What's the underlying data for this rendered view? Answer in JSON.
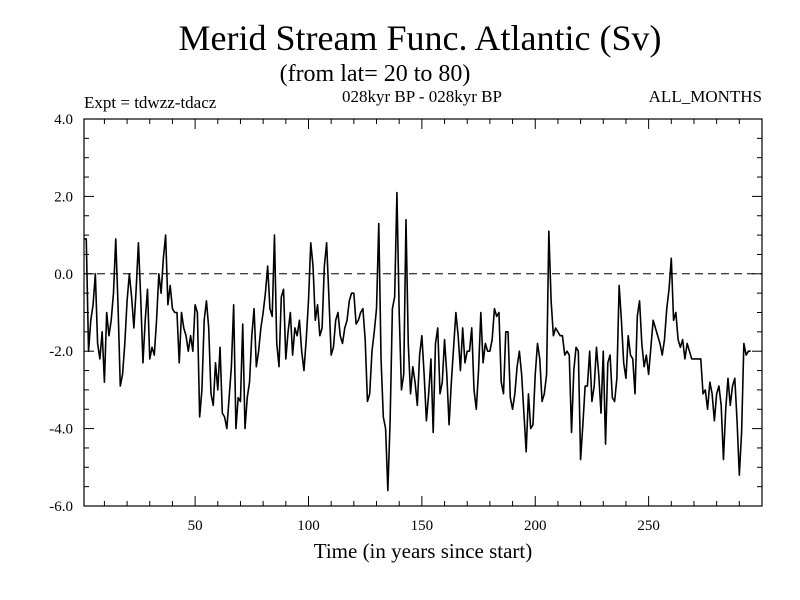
{
  "chart_data": {
    "type": "line",
    "title": "Merid Stream Func. Atlantic (Sv)",
    "subtitle": "(from lat= 20 to 80)",
    "left_note": "Expt = tdwzz-tdacz",
    "center_note": "028kyr BP - 028kyr BP",
    "right_note": "ALL_MONTHS",
    "xlabel": "Time (in years since start)",
    "ylabel": "",
    "xlim": [
      1,
      300
    ],
    "ylim": [
      -6,
      4
    ],
    "x_ticks": [
      50,
      100,
      150,
      200,
      250
    ],
    "x_tick_labels": [
      "50",
      "100",
      "150",
      "200",
      "250"
    ],
    "y_ticks": [
      4,
      2,
      0,
      -2,
      -4,
      -6
    ],
    "y_tick_labels": [
      "4.0",
      "2.0",
      "0.0",
      "-2.0",
      "-4.0",
      "-6.0"
    ],
    "reference_line": {
      "y": 0,
      "style": "dashed"
    },
    "grid": false,
    "line_color": "#000000",
    "series": [
      {
        "x_start": 1,
        "x_step": 1,
        "values": [
          0.9,
          0.9,
          -2.0,
          -1.2,
          -0.8,
          0.0,
          -1.8,
          -2.2,
          -1.5,
          -2.8,
          -1.0,
          -1.6,
          -1.2,
          -0.5,
          0.9,
          -0.8,
          -2.9,
          -2.6,
          -1.8,
          -0.7,
          0.0,
          -0.6,
          -1.4,
          -0.4,
          0.8,
          -0.6,
          -2.3,
          -1.2,
          -0.4,
          -2.2,
          -1.9,
          -2.1,
          -1.2,
          0.0,
          -0.5,
          0.4,
          1.0,
          -0.8,
          -0.3,
          -0.9,
          -1.0,
          -1.0,
          -2.3,
          -1.0,
          -1.4,
          -1.6,
          -2.0,
          -1.6,
          -2.0,
          -0.8,
          -1.0,
          -3.7,
          -3.0,
          -1.2,
          -0.7,
          -1.4,
          -3.1,
          -3.4,
          -2.3,
          -3.0,
          -1.9,
          -3.6,
          -3.7,
          -4.0,
          -3.2,
          -2.4,
          -0.8,
          -4.0,
          -3.2,
          -3.3,
          -1.3,
          -4.0,
          -3.2,
          -2.8,
          -1.6,
          -0.9,
          -2.4,
          -2.0,
          -1.4,
          -1.0,
          -0.5,
          0.2,
          -0.9,
          -1.1,
          1.0,
          -1.8,
          -2.4,
          -0.6,
          -0.4,
          -2.2,
          -1.5,
          -1.0,
          -2.1,
          -1.4,
          -1.6,
          -1.2,
          -2.0,
          -2.5,
          -1.7,
          -0.7,
          0.8,
          0.2,
          -1.2,
          -0.8,
          -1.6,
          -1.4,
          0.2,
          0.8,
          -0.6,
          -2.1,
          -1.9,
          -1.2,
          -1.0,
          -1.6,
          -1.8,
          -1.4,
          -1.2,
          -0.7,
          -0.5,
          -0.5,
          -1.3,
          -1.2,
          -1.0,
          -0.9,
          -1.7,
          -3.3,
          -3.1,
          -2.0,
          -1.5,
          -0.9,
          1.3,
          -2.2,
          -3.7,
          -4.0,
          -5.6,
          -3.8,
          -0.9,
          -0.6,
          2.1,
          -1.0,
          -3.0,
          -2.6,
          1.4,
          -1.8,
          -3.1,
          -2.4,
          -2.8,
          -3.4,
          -2.1,
          -1.6,
          -2.6,
          -3.8,
          -3.1,
          -2.2,
          -4.1,
          -1.8,
          -1.4,
          -3.1,
          -2.8,
          -1.7,
          -2.6,
          -3.9,
          -2.8,
          -1.9,
          -1.0,
          -1.6,
          -2.5,
          -1.4,
          -2.3,
          -2.0,
          -2.0,
          -1.4,
          -3.0,
          -3.5,
          -2.5,
          -1.0,
          -2.3,
          -1.8,
          -2.0,
          -2.0,
          -1.7,
          -0.9,
          -1.1,
          -1.0,
          -2.8,
          -3.1,
          -1.5,
          -1.5,
          -3.2,
          -3.5,
          -3.1,
          -2.4,
          -2.0,
          -2.6,
          -3.6,
          -4.6,
          -3.1,
          -4.0,
          -3.9,
          -2.6,
          -1.8,
          -2.2,
          -3.3,
          -3.1,
          -2.6,
          1.1,
          -0.7,
          -1.6,
          -1.4,
          -1.5,
          -1.6,
          -1.6,
          -2.1,
          -2.0,
          -2.1,
          -4.1,
          -2.5,
          -1.9,
          -2.0,
          -4.8,
          -3.9,
          -2.9,
          -2.9,
          -2.0,
          -3.3,
          -2.9,
          -1.9,
          -2.6,
          -3.6,
          -2.0,
          -4.4,
          -2.3,
          -2.1,
          -3.2,
          -3.3,
          -2.7,
          -0.3,
          -1.2,
          -2.3,
          -2.7,
          -1.6,
          -2.1,
          -2.2,
          -3.1,
          -1.1,
          -0.7,
          -1.8,
          -2.4,
          -2.1,
          -2.6,
          -1.9,
          -1.2,
          -1.4,
          -1.6,
          -1.8,
          -2.1,
          -1.7,
          -0.9,
          -0.4,
          0.4,
          -1.2,
          -1.0,
          -1.7,
          -1.9,
          -1.7,
          -2.2,
          -1.8,
          -2.0,
          -2.2,
          -2.2,
          -2.2,
          -2.2,
          -2.2,
          -3.1,
          -3.0,
          -3.5,
          -2.8,
          -3.1,
          -3.8,
          -3.1,
          -2.9,
          -3.4,
          -4.8,
          -3.5,
          -2.7,
          -3.4,
          -2.9,
          -2.7,
          -3.8,
          -5.2,
          -4.1,
          -1.8,
          -2.1,
          -2.0,
          -2.0
        ]
      }
    ]
  }
}
